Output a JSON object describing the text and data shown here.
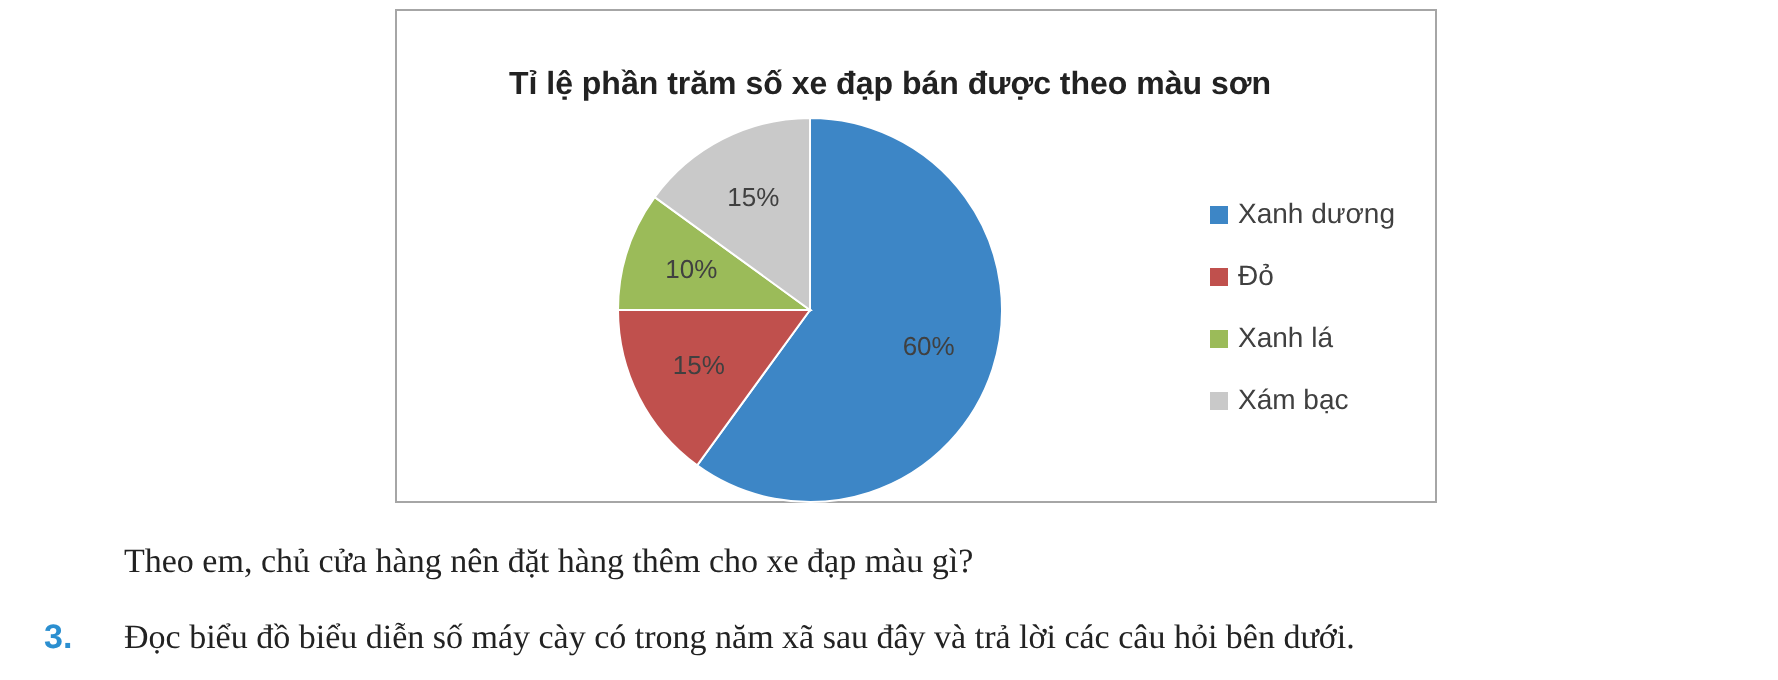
{
  "chart_data": {
    "type": "pie",
    "title": "Tỉ lệ phần trăm số xe đạp bán được theo màu sơn",
    "categories": [
      "Xanh dương",
      "Đỏ",
      "Xanh lá",
      "Xám bạc"
    ],
    "values": [
      60,
      15,
      10,
      15
    ],
    "colors": [
      "#3d86c6",
      "#c0504d",
      "#9bbb59",
      "#c9c9c9"
    ],
    "value_labels": [
      "60%",
      "15%",
      "10%",
      "15%"
    ],
    "legend": "right",
    "annotations": [
      "Theo em, chủ cửa hàng nên đặt hàng thêm cho xe đạp màu gì?",
      "3. Đọc biểu đồ biểu diễn số máy cày có trong năm xã sau đây và trả lời các câu hỏi bên dưới."
    ]
  }
}
